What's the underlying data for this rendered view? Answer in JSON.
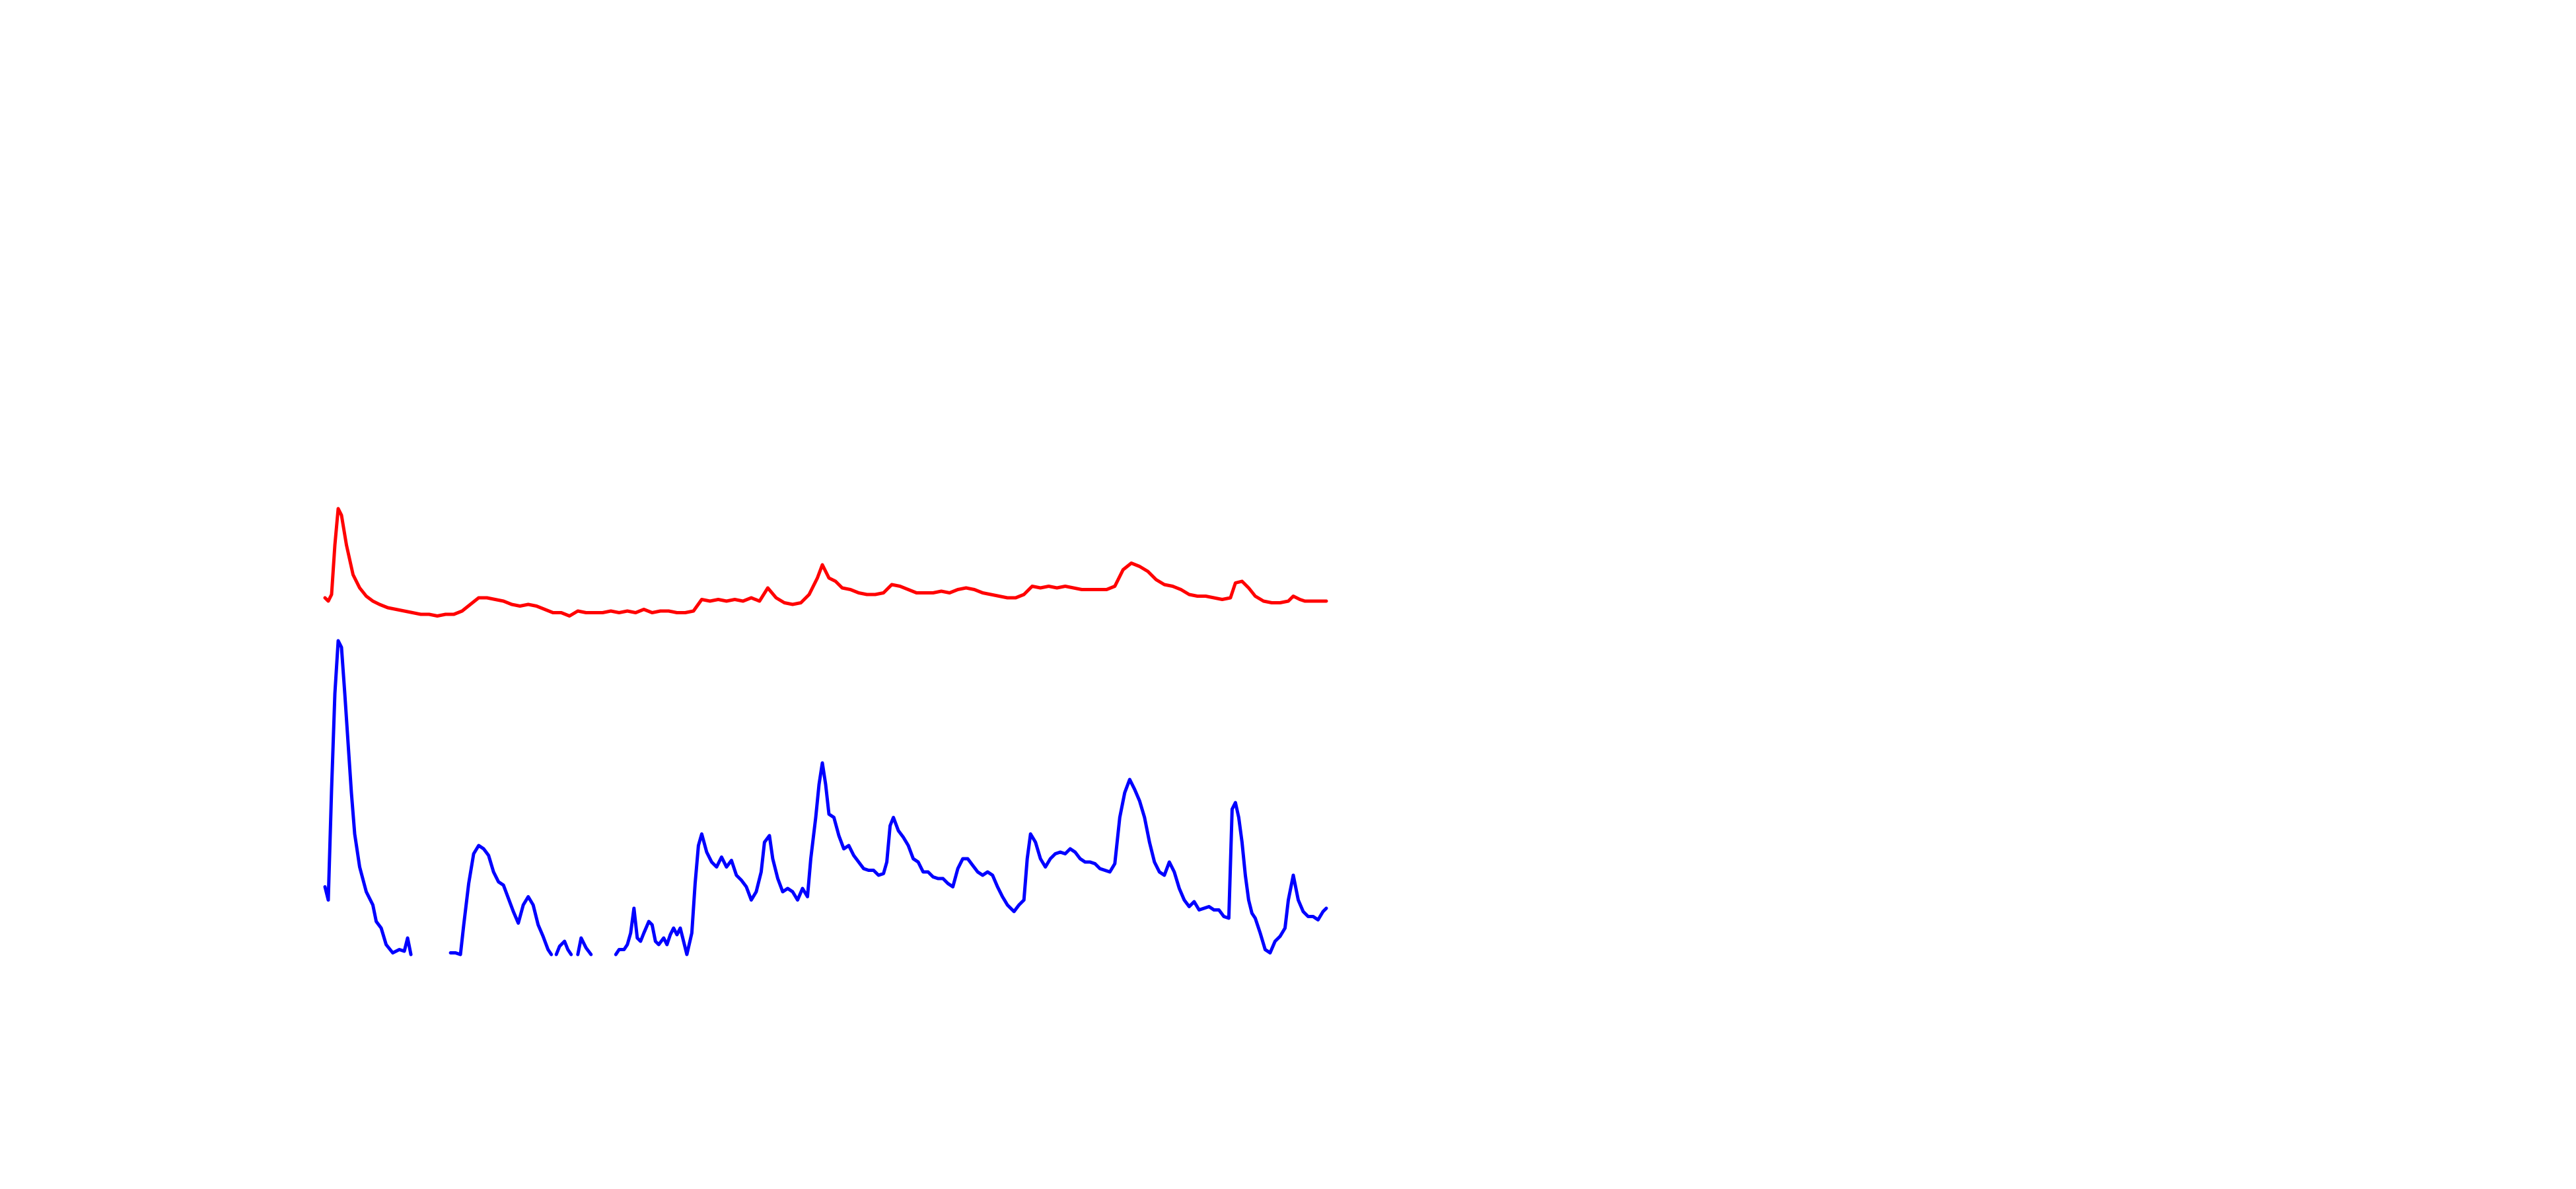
{
  "chart_data": [
    {
      "type": "line",
      "xlim": [
        0,
        606
      ],
      "ylim": [
        0,
        80
      ],
      "x": [
        0,
        2,
        4,
        6,
        8,
        10,
        13,
        17,
        21,
        25,
        29,
        33,
        38,
        43,
        48,
        53,
        58,
        63,
        68,
        73,
        78,
        83,
        88,
        93,
        98,
        103,
        108,
        113,
        118,
        123,
        128,
        133,
        138,
        143,
        148,
        153,
        158,
        163,
        168,
        173,
        178,
        183,
        188,
        193,
        198,
        203,
        208,
        213,
        218,
        223,
        228,
        233,
        238,
        243,
        248,
        253,
        258,
        263,
        268,
        273,
        278,
        283,
        288,
        293,
        298,
        301,
        305,
        309,
        313,
        318,
        323,
        328,
        333,
        338,
        343,
        348,
        353,
        358,
        363,
        368,
        373,
        378,
        383,
        388,
        393,
        398,
        403,
        408,
        413,
        418,
        423,
        428,
        433,
        438,
        443,
        448,
        453,
        458,
        463,
        468,
        473,
        478,
        483,
        488,
        493,
        498,
        503,
        508,
        513,
        518,
        523,
        528,
        533,
        538,
        543,
        548,
        551,
        555,
        559,
        563,
        568,
        573,
        578,
        583,
        586,
        590,
        593,
        598,
        603,
        606
      ],
      "series": [
        {
          "color": "#ff0000",
          "values": [
            18,
            16,
            20,
            50,
            72,
            68,
            50,
            32,
            24,
            19,
            16,
            14,
            12,
            11,
            10,
            9,
            8,
            8,
            7,
            8,
            8,
            10,
            14,
            18,
            18,
            17,
            16,
            14,
            13,
            14,
            13,
            11,
            9,
            9,
            7,
            10,
            9,
            9,
            9,
            10,
            9,
            10,
            9,
            11,
            9,
            10,
            10,
            9,
            9,
            10,
            17,
            16,
            17,
            16,
            17,
            16,
            18,
            16,
            24,
            18,
            15,
            14,
            15,
            20,
            30,
            38,
            30,
            28,
            24,
            23,
            21,
            20,
            20,
            21,
            26,
            25,
            23,
            21,
            21,
            21,
            22,
            21,
            23,
            24,
            23,
            21,
            20,
            19,
            18,
            18,
            20,
            25,
            24,
            25,
            24,
            25,
            24,
            23,
            23,
            23,
            23,
            25,
            35,
            39,
            37,
            34,
            29,
            26,
            25,
            23,
            20,
            19,
            19,
            18,
            17,
            18,
            27,
            28,
            24,
            19,
            16,
            15,
            15,
            16,
            19,
            17,
            16,
            16,
            16,
            16
          ]
        }
      ]
    },
    {
      "type": "line",
      "xlim": [
        0,
        606
      ],
      "ylim": [
        0,
        200
      ],
      "x": [
        0,
        2,
        4,
        6,
        8,
        10,
        12,
        14,
        16,
        18,
        21,
        25,
        29,
        31,
        34,
        37,
        41,
        45,
        48,
        50,
        52,
        63,
        76,
        79,
        82,
        84,
        87,
        90,
        93,
        96,
        99,
        102,
        105,
        108,
        111,
        114,
        117,
        120,
        123,
        126,
        129,
        132,
        135,
        137,
        138,
        140,
        142,
        145,
        147,
        149,
        151,
        153,
        155,
        158,
        161,
        168,
        176,
        178,
        181,
        183,
        185,
        187,
        189,
        191,
        193,
        196,
        198,
        200,
        202,
        205,
        207,
        209,
        211,
        213,
        215,
        217,
        219,
        222,
        224,
        226,
        228,
        231,
        234,
        237,
        240,
        243,
        246,
        249,
        252,
        255,
        258,
        261,
        264,
        266,
        269,
        271,
        274,
        277,
        280,
        283,
        286,
        289,
        292,
        294,
        297,
        299,
        301,
        303,
        305,
        308,
        311,
        314,
        317,
        320,
        323,
        326,
        329,
        332,
        335,
        338,
        340,
        342,
        344,
        347,
        350,
        353,
        356,
        359,
        362,
        365,
        368,
        371,
        374,
        377,
        380,
        383,
        386,
        389,
        392,
        395,
        398,
        401,
        404,
        407,
        410,
        413,
        417,
        420,
        423,
        425,
        427,
        430,
        433,
        436,
        439,
        442,
        445,
        448,
        451,
        454,
        457,
        460,
        463,
        466,
        469,
        472,
        475,
        478,
        481,
        484,
        487,
        490,
        493,
        496,
        499,
        502,
        505,
        508,
        511,
        514,
        517,
        520,
        523,
        526,
        529,
        532,
        535,
        538,
        541,
        544,
        547,
        549,
        551,
        553,
        555,
        557,
        559,
        561,
        563,
        566,
        569,
        572,
        575,
        578,
        581,
        583,
        586,
        589,
        592,
        595,
        598,
        601,
        604,
        606
      ],
      "series": [
        {
          "color": "#0000ff",
          "values": [
            41,
            33,
            100,
            158,
            190,
            186,
            158,
            128,
            98,
            73,
            53,
            38,
            30,
            20,
            16,
            6,
            1,
            3,
            2,
            10,
            0,
            null,
            1,
            1,
            0,
            18,
            43,
            61,
            66,
            64,
            60,
            50,
            44,
            42,
            34,
            26,
            19,
            30,
            35,
            30,
            18,
            11,
            3,
            0,
            null,
            0,
            5,
            8,
            3,
            0,
            null,
            0,
            10,
            4,
            0,
            null,
            0,
            3,
            3,
            6,
            13,
            28,
            10,
            8,
            13,
            20,
            18,
            8,
            6,
            10,
            6,
            12,
            16,
            12,
            16,
            8,
            0,
            13,
            43,
            66,
            73,
            62,
            56,
            53,
            59,
            53,
            57,
            48,
            45,
            41,
            33,
            38,
            50,
            68,
            72,
            58,
            46,
            38,
            40,
            38,
            33,
            40,
            35,
            58,
            83,
            103,
            116,
            103,
            85,
            83,
            72,
            64,
            66,
            60,
            56,
            52,
            51,
            51,
            48,
            49,
            56,
            78,
            83,
            75,
            71,
            66,
            58,
            56,
            50,
            50,
            47,
            46,
            46,
            43,
            41,
            52,
            58,
            58,
            54,
            50,
            48,
            50,
            48,
            41,
            35,
            30,
            26,
            30,
            33,
            58,
            73,
            68,
            58,
            53,
            58,
            61,
            62,
            61,
            64,
            62,
            58,
            56,
            56,
            55,
            52,
            51,
            50,
            55,
            83,
            98,
            106,
            100,
            93,
            83,
            68,
            56,
            50,
            48,
            56,
            50,
            40,
            33,
            29,
            32,
            27,
            28,
            29,
            27,
            27,
            23,
            22,
            88,
            92,
            83,
            68,
            48,
            33,
            25,
            22,
            13,
            3,
            1,
            8,
            11,
            16,
            33,
            48,
            33,
            26,
            23,
            23,
            21,
            26,
            28
          ]
        }
      ]
    }
  ]
}
